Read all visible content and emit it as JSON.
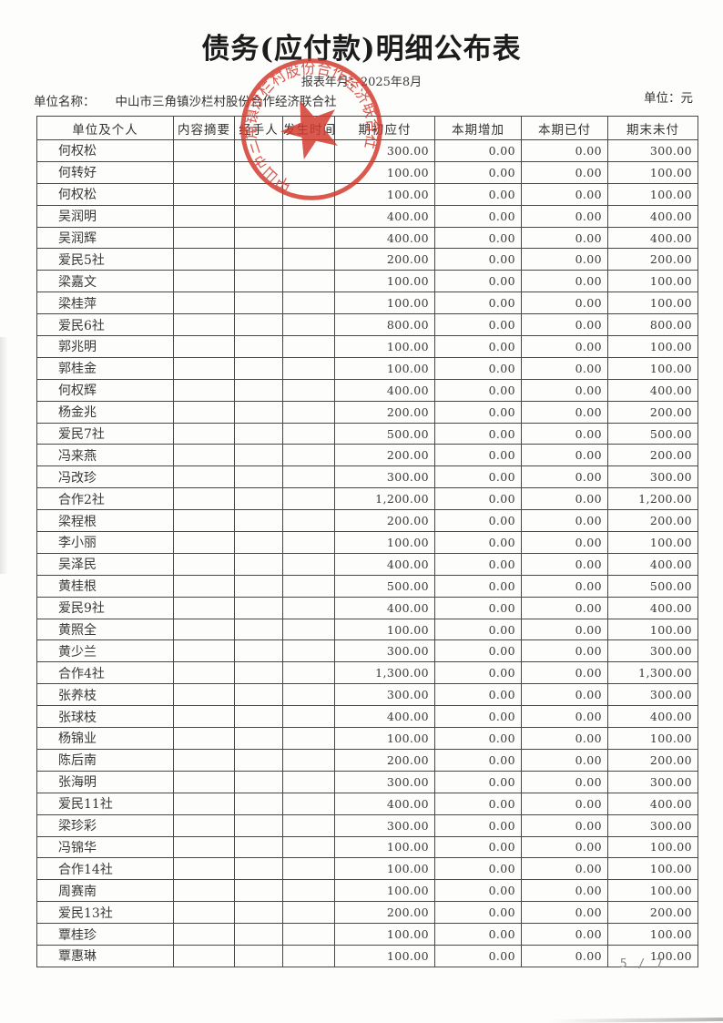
{
  "document": {
    "title": "债务(应付款)明细公布表",
    "report_period": "报表年月：2025年8月",
    "unit_name_label": "单位名称：",
    "unit_name": "中山市三角镇沙栏村股份合作经济联合社",
    "currency_label": "单位：元",
    "page_indicator": "5 / 7"
  },
  "stamp": {
    "text": "中山市三角镇沙栏村股份合作经济联合社",
    "color": "#d4392d"
  },
  "table": {
    "headers": [
      "单位及个人",
      "内容摘要",
      "经手人",
      "发生时间",
      "期初应付",
      "本期增加",
      "本期已付",
      "期末未付"
    ],
    "rows": [
      [
        "何权松",
        "",
        "",
        "",
        "300.00",
        "0.00",
        "0.00",
        "300.00"
      ],
      [
        "何转好",
        "",
        "",
        "",
        "100.00",
        "0.00",
        "0.00",
        "100.00"
      ],
      [
        "何权松",
        "",
        "",
        "",
        "100.00",
        "0.00",
        "0.00",
        "100.00"
      ],
      [
        "吴润明",
        "",
        "",
        "",
        "400.00",
        "0.00",
        "0.00",
        "400.00"
      ],
      [
        "吴润辉",
        "",
        "",
        "",
        "400.00",
        "0.00",
        "0.00",
        "400.00"
      ],
      [
        "爱民5社",
        "",
        "",
        "",
        "200.00",
        "0.00",
        "0.00",
        "200.00"
      ],
      [
        "梁嘉文",
        "",
        "",
        "",
        "100.00",
        "0.00",
        "0.00",
        "100.00"
      ],
      [
        "梁桂萍",
        "",
        "",
        "",
        "100.00",
        "0.00",
        "0.00",
        "100.00"
      ],
      [
        "爱民6社",
        "",
        "",
        "",
        "800.00",
        "0.00",
        "0.00",
        "800.00"
      ],
      [
        "郭兆明",
        "",
        "",
        "",
        "100.00",
        "0.00",
        "0.00",
        "100.00"
      ],
      [
        "郭桂金",
        "",
        "",
        "",
        "100.00",
        "0.00",
        "0.00",
        "100.00"
      ],
      [
        "何权辉",
        "",
        "",
        "",
        "400.00",
        "0.00",
        "0.00",
        "400.00"
      ],
      [
        "杨金兆",
        "",
        "",
        "",
        "200.00",
        "0.00",
        "0.00",
        "200.00"
      ],
      [
        "爱民7社",
        "",
        "",
        "",
        "500.00",
        "0.00",
        "0.00",
        "500.00"
      ],
      [
        "冯来燕",
        "",
        "",
        "",
        "200.00",
        "0.00",
        "0.00",
        "200.00"
      ],
      [
        "冯改珍",
        "",
        "",
        "",
        "300.00",
        "0.00",
        "0.00",
        "300.00"
      ],
      [
        "合作2社",
        "",
        "",
        "",
        "1,200.00",
        "0.00",
        "0.00",
        "1,200.00"
      ],
      [
        "梁程根",
        "",
        "",
        "",
        "200.00",
        "0.00",
        "0.00",
        "200.00"
      ],
      [
        "李小丽",
        "",
        "",
        "",
        "100.00",
        "0.00",
        "0.00",
        "100.00"
      ],
      [
        "吴泽民",
        "",
        "",
        "",
        "400.00",
        "0.00",
        "0.00",
        "400.00"
      ],
      [
        "黄桂根",
        "",
        "",
        "",
        "500.00",
        "0.00",
        "0.00",
        "500.00"
      ],
      [
        "爱民9社",
        "",
        "",
        "",
        "400.00",
        "0.00",
        "0.00",
        "400.00"
      ],
      [
        "黄照全",
        "",
        "",
        "",
        "100.00",
        "0.00",
        "0.00",
        "100.00"
      ],
      [
        "黄少兰",
        "",
        "",
        "",
        "300.00",
        "0.00",
        "0.00",
        "300.00"
      ],
      [
        "合作4社",
        "",
        "",
        "",
        "1,300.00",
        "0.00",
        "0.00",
        "1,300.00"
      ],
      [
        "张养枝",
        "",
        "",
        "",
        "300.00",
        "0.00",
        "0.00",
        "300.00"
      ],
      [
        "张球枝",
        "",
        "",
        "",
        "400.00",
        "0.00",
        "0.00",
        "400.00"
      ],
      [
        "杨锦业",
        "",
        "",
        "",
        "100.00",
        "0.00",
        "0.00",
        "100.00"
      ],
      [
        "陈后南",
        "",
        "",
        "",
        "200.00",
        "0.00",
        "0.00",
        "200.00"
      ],
      [
        "张海明",
        "",
        "",
        "",
        "300.00",
        "0.00",
        "0.00",
        "300.00"
      ],
      [
        "爱民11社",
        "",
        "",
        "",
        "400.00",
        "0.00",
        "0.00",
        "400.00"
      ],
      [
        "梁珍彩",
        "",
        "",
        "",
        "300.00",
        "0.00",
        "0.00",
        "300.00"
      ],
      [
        "冯锦华",
        "",
        "",
        "",
        "100.00",
        "0.00",
        "0.00",
        "100.00"
      ],
      [
        "合作14社",
        "",
        "",
        "",
        "100.00",
        "0.00",
        "0.00",
        "100.00"
      ],
      [
        "周赛南",
        "",
        "",
        "",
        "100.00",
        "0.00",
        "0.00",
        "100.00"
      ],
      [
        "爱民13社",
        "",
        "",
        "",
        "200.00",
        "0.00",
        "0.00",
        "200.00"
      ],
      [
        "覃桂珍",
        "",
        "",
        "",
        "100.00",
        "0.00",
        "0.00",
        "100.00"
      ],
      [
        "覃惠琳",
        "",
        "",
        "",
        "100.00",
        "0.00",
        "0.00",
        "100.00"
      ]
    ]
  }
}
